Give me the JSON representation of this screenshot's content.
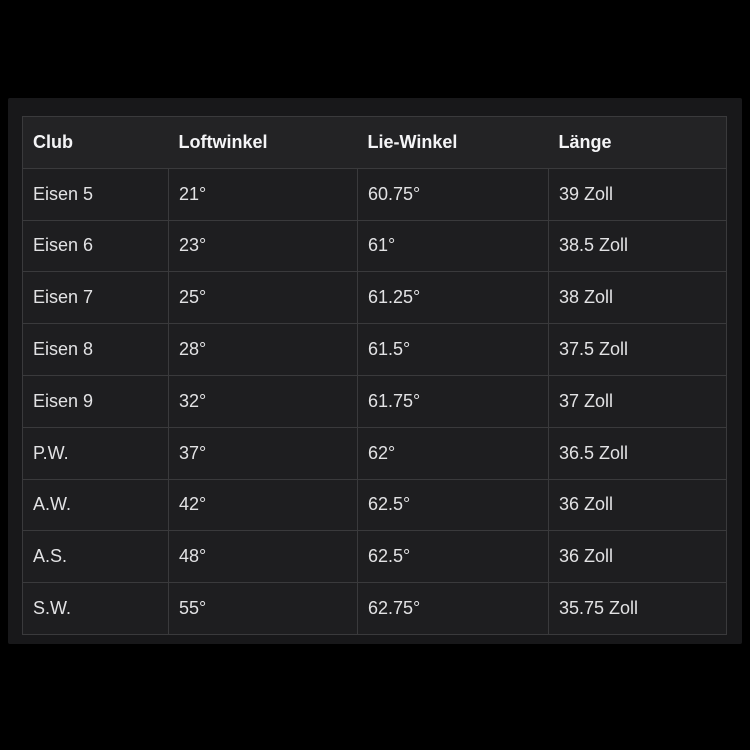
{
  "colors": {
    "page_bg": "#000000",
    "panel_bg": "#18181a",
    "header_bg": "#232325",
    "row_bg": "#1e1e20",
    "border": "#3a3a3c",
    "header_text": "#f4f4f6",
    "cell_text": "#e2e2e4"
  },
  "table": {
    "columns": [
      "Club",
      "Loftwinkel",
      "Lie-Winkel",
      "Länge"
    ],
    "rows": [
      [
        "Eisen 5",
        "21°",
        "60.75°",
        "39 Zoll"
      ],
      [
        "Eisen 6",
        "23°",
        "61°",
        "38.5 Zoll"
      ],
      [
        "Eisen 7",
        "25°",
        "61.25°",
        "38 Zoll"
      ],
      [
        "Eisen 8",
        "28°",
        "61.5°",
        "37.5 Zoll"
      ],
      [
        "Eisen 9",
        "32°",
        "61.75°",
        "37 Zoll"
      ],
      [
        "P.W.",
        "37°",
        "62°",
        "36.5 Zoll"
      ],
      [
        "A.W.",
        "42°",
        "62.5°",
        "36 Zoll"
      ],
      [
        "A.S.",
        "48°",
        "62.5°",
        "36 Zoll"
      ],
      [
        "S.W.",
        "55°",
        "62.75°",
        "35.75 Zoll"
      ]
    ]
  },
  "chart_data": {
    "type": "table",
    "title": "",
    "columns": [
      "Club",
      "Loftwinkel",
      "Lie-Winkel",
      "Länge"
    ],
    "rows": [
      {
        "club": "Eisen 5",
        "loftwinkel_deg": 21,
        "lie_winkel_deg": 60.75,
        "laenge_zoll": 39
      },
      {
        "club": "Eisen 6",
        "loftwinkel_deg": 23,
        "lie_winkel_deg": 61,
        "laenge_zoll": 38.5
      },
      {
        "club": "Eisen 7",
        "loftwinkel_deg": 25,
        "lie_winkel_deg": 61.25,
        "laenge_zoll": 38
      },
      {
        "club": "Eisen 8",
        "loftwinkel_deg": 28,
        "lie_winkel_deg": 61.5,
        "laenge_zoll": 37.5
      },
      {
        "club": "Eisen 9",
        "loftwinkel_deg": 32,
        "lie_winkel_deg": 61.75,
        "laenge_zoll": 37
      },
      {
        "club": "P.W.",
        "loftwinkel_deg": 37,
        "lie_winkel_deg": 62,
        "laenge_zoll": 36.5
      },
      {
        "club": "A.W.",
        "loftwinkel_deg": 42,
        "lie_winkel_deg": 62.5,
        "laenge_zoll": 36
      },
      {
        "club": "A.S.",
        "loftwinkel_deg": 48,
        "lie_winkel_deg": 62.5,
        "laenge_zoll": 36
      },
      {
        "club": "S.W.",
        "loftwinkel_deg": 55,
        "lie_winkel_deg": 62.75,
        "laenge_zoll": 35.75
      }
    ]
  }
}
